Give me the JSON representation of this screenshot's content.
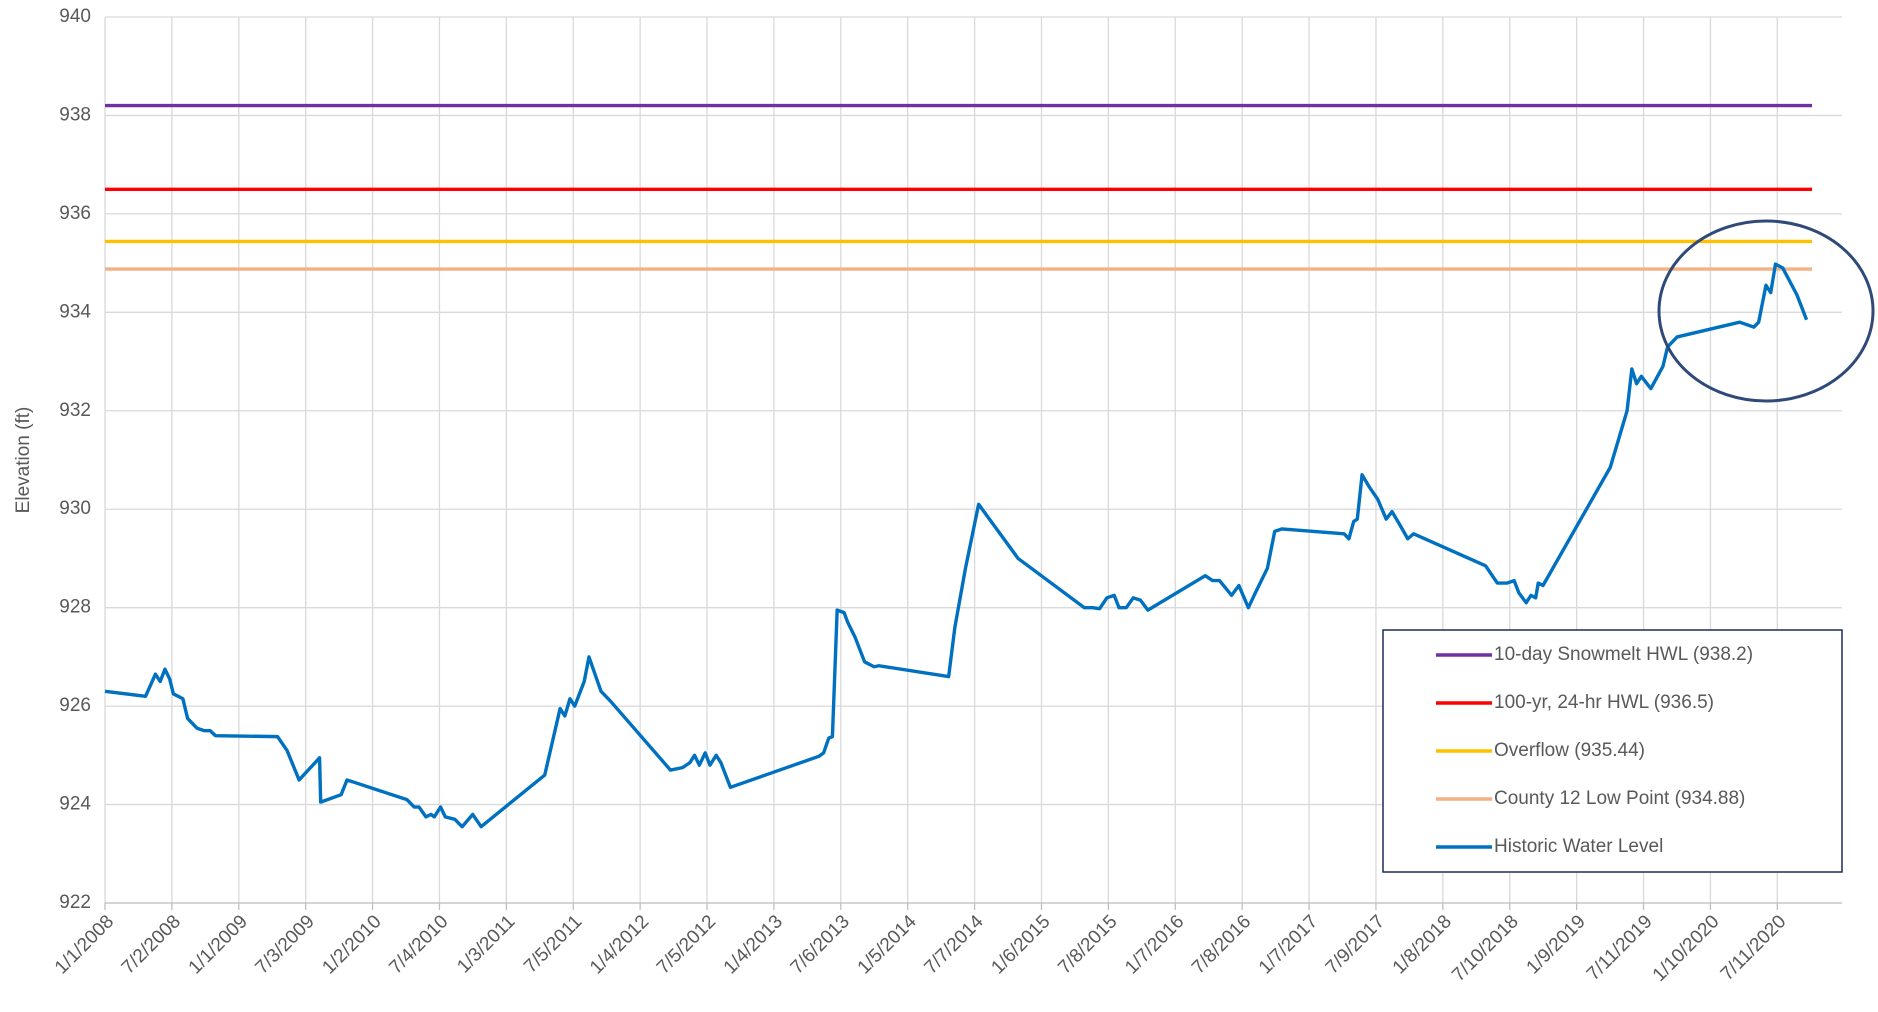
{
  "chart_data": {
    "type": "line",
    "y_label": "Elevation (ft)",
    "ylim": [
      922,
      940
    ],
    "yticks": [
      922,
      924,
      926,
      928,
      930,
      932,
      934,
      936,
      938,
      940
    ],
    "xlim": [
      "2008-01-01",
      "2021-01-04"
    ],
    "xticks": [
      {
        "value": "2008-01-01",
        "label": "1/1/2008"
      },
      {
        "value": "2008-07-02",
        "label": "7/2/2008"
      },
      {
        "value": "2009-01-01",
        "label": "1/1/2009"
      },
      {
        "value": "2009-07-03",
        "label": "7/3/2009"
      },
      {
        "value": "2010-01-02",
        "label": "1/2/2010"
      },
      {
        "value": "2010-07-04",
        "label": "7/4/2010"
      },
      {
        "value": "2011-01-03",
        "label": "1/3/2011"
      },
      {
        "value": "2011-07-05",
        "label": "7/5/2011"
      },
      {
        "value": "2012-01-04",
        "label": "1/4/2012"
      },
      {
        "value": "2012-07-05",
        "label": "7/5/2012"
      },
      {
        "value": "2013-01-04",
        "label": "1/4/2013"
      },
      {
        "value": "2013-07-06",
        "label": "7/6/2013"
      },
      {
        "value": "2014-01-05",
        "label": "1/5/2014"
      },
      {
        "value": "2014-07-07",
        "label": "7/7/2014"
      },
      {
        "value": "2015-01-06",
        "label": "1/6/2015"
      },
      {
        "value": "2015-07-08",
        "label": "7/8/2015"
      },
      {
        "value": "2016-01-07",
        "label": "1/7/2016"
      },
      {
        "value": "2016-07-08",
        "label": "7/8/2016"
      },
      {
        "value": "2017-01-07",
        "label": "1/7/2017"
      },
      {
        "value": "2017-07-09",
        "label": "7/9/2017"
      },
      {
        "value": "2018-01-08",
        "label": "1/8/2018"
      },
      {
        "value": "2018-07-10",
        "label": "7/10/2018"
      },
      {
        "value": "2019-01-09",
        "label": "1/9/2019"
      },
      {
        "value": "2019-07-11",
        "label": "7/11/2019"
      },
      {
        "value": "2020-01-10",
        "label": "1/10/2020"
      },
      {
        "value": "2020-07-11",
        "label": "7/11/2020"
      }
    ],
    "grid": true,
    "legend": "lower right",
    "series": [
      {
        "name": "10-day Snowmelt HWL (938.2)",
        "color": "#7030a0",
        "x": [
          "2008-01-01",
          "2020-10-14"
        ],
        "values": [
          938.2,
          938.2
        ]
      },
      {
        "name": "100-yr, 24-hr HWL (936.5)",
        "color": "#ff0000",
        "x": [
          "2008-01-01",
          "2020-10-14"
        ],
        "values": [
          936.5,
          936.5
        ]
      },
      {
        "name": "Overflow (935.44)",
        "color": "#ffc000",
        "x": [
          "2008-01-01",
          "2020-10-14"
        ],
        "values": [
          935.44,
          935.44
        ]
      },
      {
        "name": "County 12 Low Point (934.88)",
        "color": "#f4b183",
        "x": [
          "2008-01-01",
          "2020-10-14"
        ],
        "values": [
          934.88,
          934.88
        ]
      },
      {
        "name": "Historic Water Level",
        "color": "#0070c0",
        "x": [
          "2008-01-01",
          "2008-04-21",
          "2008-05-18",
          "2008-05-31",
          "2008-06-13",
          "2008-06-26",
          "2008-07-06",
          "2008-08-01",
          "2008-08-14",
          "2008-09-09",
          "2008-09-29",
          "2008-10-15",
          "2008-10-29",
          "2009-04-17",
          "2009-05-13",
          "2009-06-15",
          "2009-08-10",
          "2009-08-13",
          "2009-10-08",
          "2009-10-24",
          "2010-04-06",
          "2010-04-26",
          "2010-05-09",
          "2010-05-28",
          "2010-06-11",
          "2010-06-20",
          "2010-07-07",
          "2010-07-20",
          "2010-08-15",
          "2010-09-04",
          "2010-10-03",
          "2010-10-26",
          "2011-04-18",
          "2011-05-30",
          "2011-06-12",
          "2011-06-26",
          "2011-07-09",
          "2011-08-04",
          "2011-08-17",
          "2011-09-19",
          "2011-10-15",
          "2012-03-27",
          "2012-04-29",
          "2012-05-19",
          "2012-06-01",
          "2012-06-14",
          "2012-06-30",
          "2012-07-13",
          "2012-07-30",
          "2012-08-12",
          "2012-09-07",
          "2013-05-07",
          "2013-05-20",
          "2013-06-03",
          "2013-06-13",
          "2013-06-26",
          "2013-07-15",
          "2013-07-25",
          "2013-08-14",
          "2013-09-09",
          "2013-10-05",
          "2013-10-18",
          "2014-04-27",
          "2014-05-14",
          "2014-06-12",
          "2014-07-18",
          "2014-11-03",
          "2015-05-03",
          "2015-05-26",
          "2015-06-14",
          "2015-07-04",
          "2015-07-24",
          "2015-08-06",
          "2015-08-26",
          "2015-09-14",
          "2015-10-04",
          "2015-10-24",
          "2016-03-29",
          "2016-04-18",
          "2016-05-07",
          "2016-06-09",
          "2016-06-29",
          "2016-07-25",
          "2016-08-13",
          "2016-09-15",
          "2016-10-05",
          "2016-10-25",
          "2017-04-13",
          "2017-04-26",
          "2017-05-09",
          "2017-05-19",
          "2017-06-01",
          "2017-06-21",
          "2017-07-14",
          "2017-08-06",
          "2017-08-22",
          "2017-09-11",
          "2017-10-04",
          "2017-10-20",
          "2018-05-05",
          "2018-06-06",
          "2018-07-03",
          "2018-07-22",
          "2018-08-04",
          "2018-08-24",
          "2018-09-06",
          "2018-09-19",
          "2018-09-26",
          "2018-10-09",
          "2019-04-11",
          "2019-05-27",
          "2019-06-09",
          "2019-06-22",
          "2019-07-05",
          "2019-07-31",
          "2019-09-02",
          "2019-09-15",
          "2019-10-11",
          "2020-03-30",
          "2020-05-08",
          "2020-05-21",
          "2020-06-10",
          "2020-06-23",
          "2020-07-06",
          "2020-07-26",
          "2020-09-03",
          "2020-09-29"
        ],
        "values": [
          926.3,
          926.2,
          926.65,
          926.5,
          926.75,
          926.55,
          926.25,
          926.15,
          925.75,
          925.55,
          925.5,
          925.5,
          925.4,
          925.38,
          925.1,
          924.5,
          924.95,
          924.05,
          924.2,
          924.5,
          924.1,
          923.95,
          923.95,
          923.75,
          923.8,
          923.75,
          923.95,
          923.75,
          923.7,
          923.55,
          923.8,
          923.55,
          924.6,
          925.95,
          925.8,
          926.15,
          926.0,
          926.5,
          927.0,
          926.3,
          926.1,
          924.7,
          924.75,
          924.85,
          925.0,
          924.8,
          925.05,
          924.8,
          925.0,
          924.85,
          924.35,
          924.98,
          925.05,
          925.35,
          925.38,
          927.95,
          927.9,
          927.7,
          927.4,
          926.9,
          926.8,
          926.82,
          926.6,
          927.6,
          928.8,
          930.1,
          929.0,
          928.0,
          928.0,
          927.98,
          928.2,
          928.25,
          928.0,
          928.0,
          928.2,
          928.15,
          927.95,
          928.65,
          928.55,
          928.55,
          928.25,
          928.45,
          928.0,
          928.3,
          928.8,
          929.55,
          929.6,
          929.5,
          929.4,
          929.75,
          929.8,
          930.7,
          930.45,
          930.2,
          929.8,
          929.95,
          929.7,
          929.4,
          929.5,
          928.85,
          928.5,
          928.5,
          928.55,
          928.3,
          928.1,
          928.25,
          928.2,
          928.5,
          928.45,
          930.85,
          932.0,
          932.85,
          932.55,
          932.7,
          932.45,
          932.9,
          933.3,
          933.5,
          933.8,
          933.7,
          933.8,
          934.55,
          934.4,
          934.98,
          934.9,
          934.35,
          933.85
        ]
      }
    ]
  }
}
